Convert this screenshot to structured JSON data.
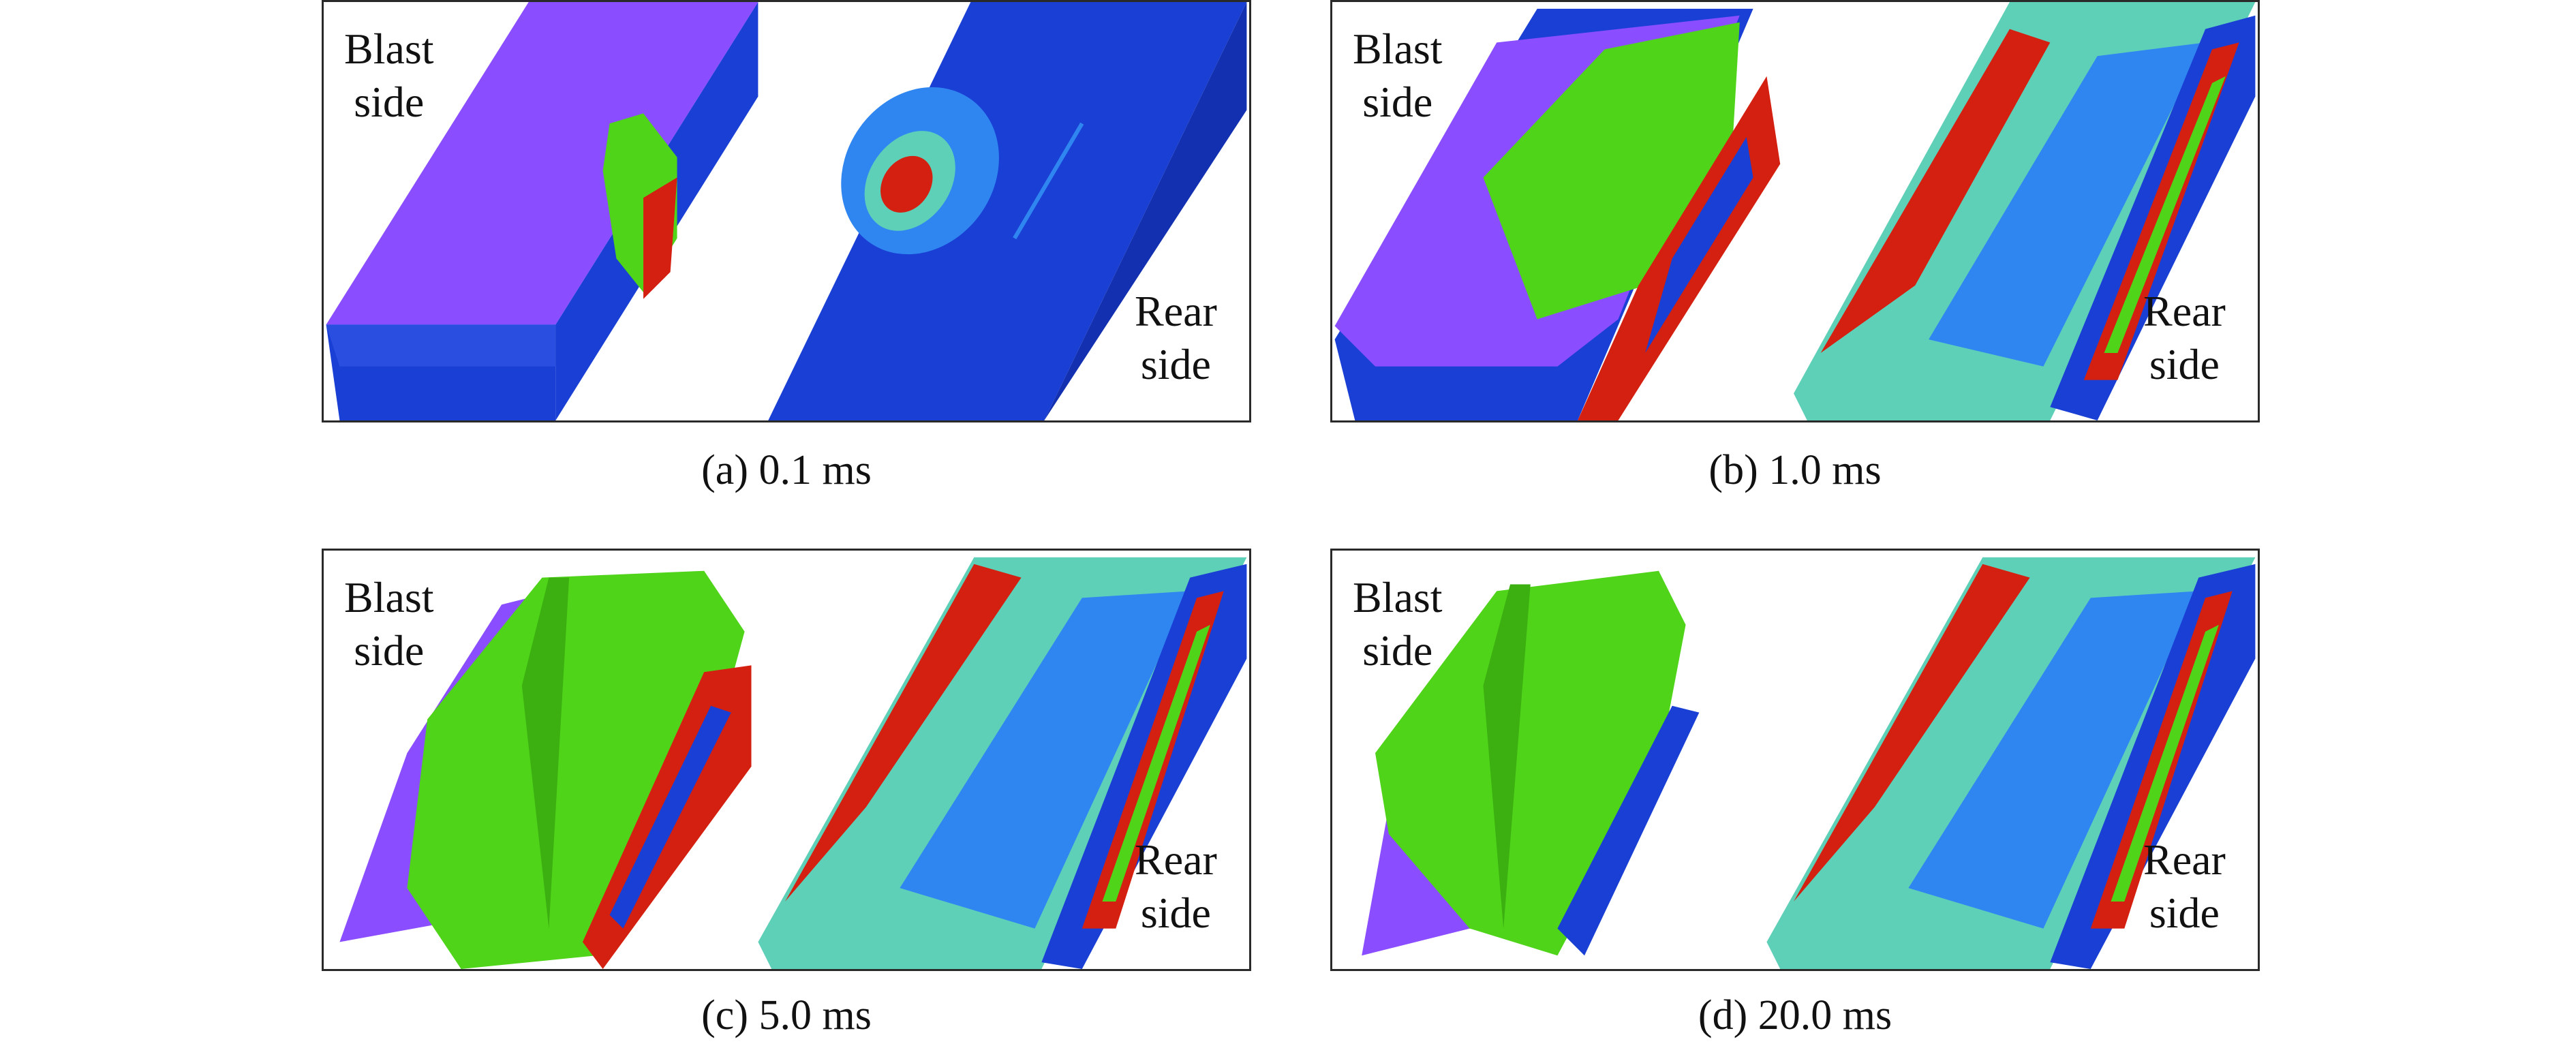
{
  "figure": {
    "panels": [
      {
        "id": "a",
        "caption": "(a) 0.1 ms",
        "blast_label": "Blast\nside",
        "rear_label": "Rear\nside"
      },
      {
        "id": "b",
        "caption": "(b) 1.0 ms",
        "blast_label": "Blast\nside",
        "rear_label": "Rear\nside"
      },
      {
        "id": "c",
        "caption": "(c) 5.0 ms",
        "blast_label": "Blast\nside",
        "rear_label": "Rear\nside"
      },
      {
        "id": "d",
        "caption": "(d) 20.0 ms",
        "blast_label": "Blast\nside",
        "rear_label": "Rear\nside"
      }
    ]
  },
  "colors": {
    "purple": "#8a4dff",
    "purple_dark": "#6b38e0",
    "blue": "#1a3fd4",
    "blue_dark": "#1230b0",
    "light_blue": "#2f86f0",
    "cyan": "#5fd0b8",
    "green": "#4fd41a",
    "green_dark": "#3cb010",
    "red": "#d42010",
    "frame": "#2a2a2a"
  }
}
